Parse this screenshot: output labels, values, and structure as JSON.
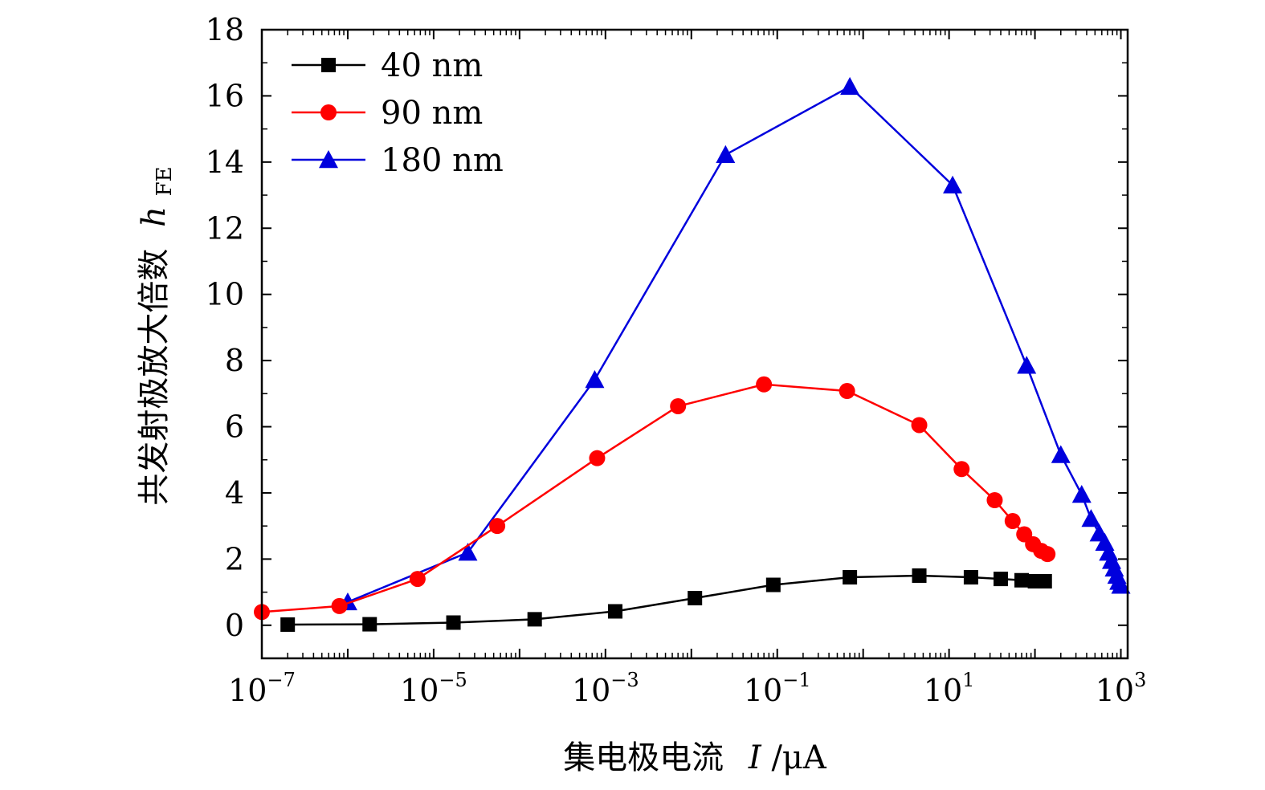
{
  "chart_data": {
    "type": "line",
    "x_scale": "log",
    "xlabel_text": "集电极电流",
    "xlabel_var": "I",
    "xlabel_unit": "/μA",
    "ylabel_text": "共发射极放大倍数",
    "ylabel_var": "h",
    "ylabel_sub": "FE",
    "xlim": [
      1e-07,
      1200
    ],
    "ylim": [
      -1,
      18
    ],
    "x_ticks": [
      {
        "base": "10",
        "exp": "−7",
        "value": 1e-07
      },
      {
        "base": "10",
        "exp": "−5",
        "value": 1e-05
      },
      {
        "base": "10",
        "exp": "−3",
        "value": 0.001
      },
      {
        "base": "10",
        "exp": "−1",
        "value": 0.1
      },
      {
        "base": "10",
        "exp": "1",
        "value": 10
      },
      {
        "base": "10",
        "exp": "3",
        "value": 1000
      }
    ],
    "y_ticks": [
      {
        "label": "0",
        "value": 0
      },
      {
        "label": "2",
        "value": 2
      },
      {
        "label": "4",
        "value": 4
      },
      {
        "label": "6",
        "value": 6
      },
      {
        "label": "8",
        "value": 8
      },
      {
        "label": "10",
        "value": 10
      },
      {
        "label": "12",
        "value": 12
      },
      {
        "label": "14",
        "value": 14
      },
      {
        "label": "16",
        "value": 16
      },
      {
        "label": "18",
        "value": 18
      }
    ],
    "legend_position": "top-left",
    "series": [
      {
        "name": "40 nm",
        "color": "#000000",
        "marker": "square",
        "x": [
          2e-07,
          1.8e-06,
          1.7e-05,
          0.00015,
          0.0013,
          0.011,
          0.09,
          0.7,
          4.5,
          18,
          40,
          70,
          100,
          130
        ],
        "y": [
          0.02,
          0.03,
          0.08,
          0.18,
          0.42,
          0.82,
          1.22,
          1.45,
          1.5,
          1.45,
          1.4,
          1.36,
          1.33,
          1.33
        ]
      },
      {
        "name": "90 nm",
        "color": "#ff0000",
        "marker": "circle",
        "x": [
          1e-07,
          8e-07,
          6.5e-06,
          5.5e-05,
          0.0008,
          0.007,
          0.07,
          0.65,
          4.5,
          14,
          34,
          55,
          75,
          95,
          118,
          140
        ],
        "y": [
          0.4,
          0.58,
          1.4,
          3.0,
          5.05,
          6.62,
          7.28,
          7.08,
          6.05,
          4.72,
          3.78,
          3.15,
          2.75,
          2.45,
          2.25,
          2.15
        ]
      },
      {
        "name": "180 nm",
        "color": "#0000dd",
        "marker": "triangle",
        "x": [
          1e-06,
          2.5e-05,
          0.00075,
          0.025,
          0.7,
          11,
          80,
          200,
          350,
          450,
          560,
          650,
          720,
          780,
          840,
          900,
          950,
          1000
        ],
        "y": [
          0.7,
          2.2,
          7.42,
          14.22,
          16.28,
          13.3,
          7.85,
          5.15,
          3.95,
          3.22,
          2.78,
          2.5,
          2.2,
          1.95,
          1.72,
          1.5,
          1.32,
          1.2
        ]
      }
    ]
  }
}
